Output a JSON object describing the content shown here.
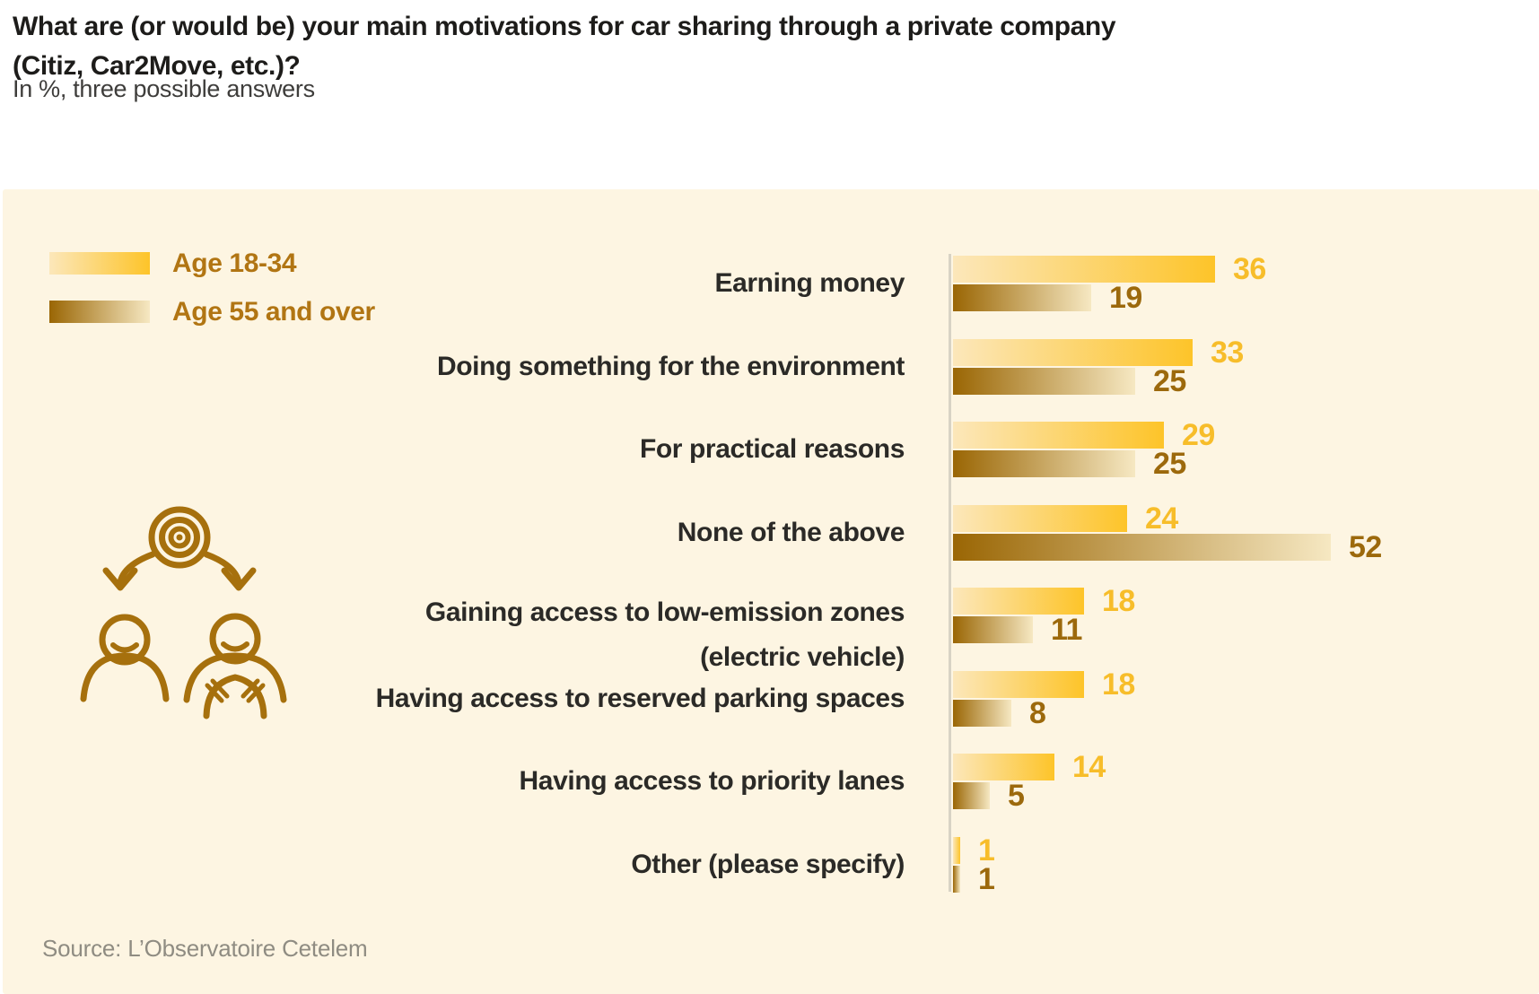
{
  "header": {
    "title_line1": "What are (or would be) your main motivations for car sharing through a private company",
    "title_line2": "(Citiz, Car2Move, etc.)?",
    "subtitle": "In %, three possible answers"
  },
  "legend": [
    {
      "label": "Age 18-34"
    },
    {
      "label": "Age 55 and over"
    }
  ],
  "source": {
    "text": "Source: L’Observatoire Cetelem"
  },
  "icon": {
    "name": "target-split-to-passenger-and-driver"
  },
  "colors": {
    "panel_bg": "#FDF5E2",
    "title_text": "#1D1C1A",
    "subtitle_text": "#3E3D3B",
    "legend_text": "#B17513",
    "category_text": "#2B2A27",
    "series_young_start": "#FCE7BA",
    "series_young_end": "#FDC429",
    "series_old_start": "#9A6604",
    "series_old_end": "#F6E8C2",
    "value_young_text": "#F7BD2A",
    "value_old_text": "#9C690C",
    "axis_line": "#D8D3C5",
    "icon_stroke": "#A6700D",
    "source_text": "#8F8C82"
  },
  "chart_data": {
    "type": "bar",
    "orientation": "horizontal",
    "unit": "%",
    "title": "What are (or would be) your main motivations for car sharing through a private company (Citiz, Car2Move, etc.)?",
    "subtitle": "In %, three possible answers",
    "legend_position": "top-left",
    "value_labels_shown": true,
    "grid": false,
    "xlim": [
      0,
      52
    ],
    "categories": [
      "Earning money",
      "Doing something for the environment",
      "For practical reasons",
      "None of the above",
      "Gaining access to low-emission zones (electric vehicle)",
      "Having access to reserved parking spaces",
      "Having access to priority lanes",
      "Other (please specify)"
    ],
    "category_lines": [
      [
        "Earning money"
      ],
      [
        "Doing something for the environment"
      ],
      [
        "For practical reasons"
      ],
      [
        "None of the above"
      ],
      [
        "Gaining access to low-emission zones",
        "(electric vehicle)"
      ],
      [
        "Having access to reserved parking spaces"
      ],
      [
        "Having access to priority lanes"
      ],
      [
        "Other (please specify)"
      ]
    ],
    "series": [
      {
        "name": "Age 18-34",
        "values": [
          36,
          33,
          29,
          24,
          18,
          18,
          14,
          1
        ]
      },
      {
        "name": "Age 55 and over",
        "values": [
          19,
          25,
          25,
          52,
          11,
          8,
          5,
          1
        ]
      }
    ]
  }
}
